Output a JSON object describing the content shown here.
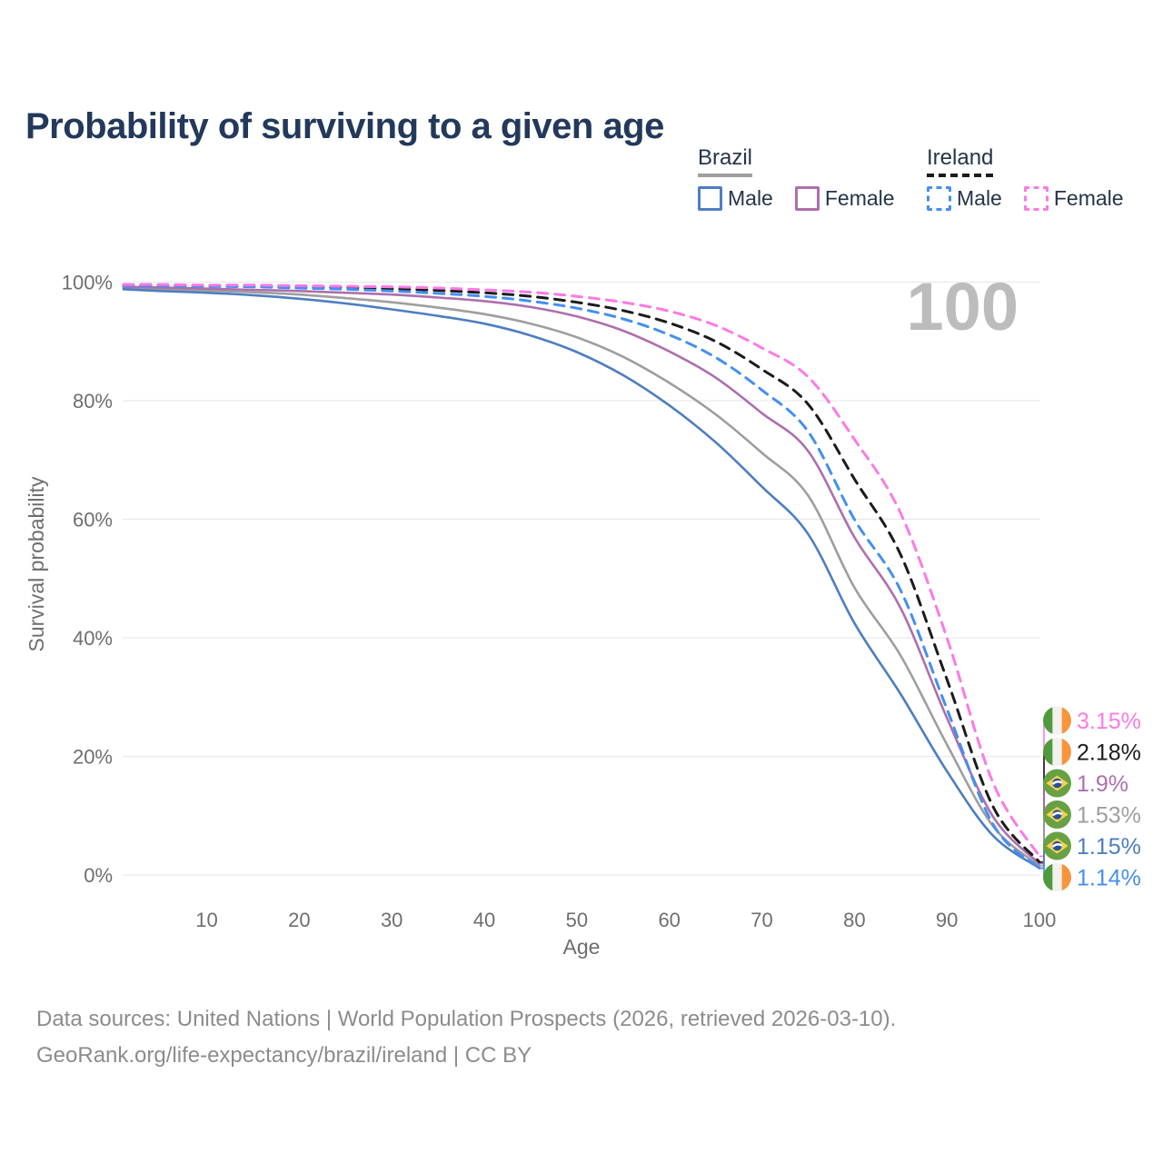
{
  "title": "Probability of surviving to a given age",
  "watermark_age": "100",
  "legend": {
    "groups": [
      {
        "label": "Brazil",
        "line_color": "#9e9e9e",
        "line_style": "solid",
        "items": [
          {
            "label": "Male",
            "color": "#4d7ec2",
            "style": "solid"
          },
          {
            "label": "Female",
            "color": "#ad6fad",
            "style": "solid"
          }
        ]
      },
      {
        "label": "Ireland",
        "line_color": "#1b1b1b",
        "line_style": "dashed",
        "items": [
          {
            "label": "Male",
            "color": "#448ff0",
            "style": "dashed"
          },
          {
            "label": "Female",
            "color": "#fb7ae6",
            "style": "dashed"
          }
        ]
      }
    ]
  },
  "chart_data": {
    "type": "line",
    "title": "Probability of surviving to a given age",
    "xlabel": "Age",
    "ylabel": "Survival probability",
    "xlim": [
      0,
      100
    ],
    "ylim": [
      0,
      100
    ],
    "grid": "horizontal",
    "legend_position": "top-right",
    "x_ticks": [
      {
        "label": "10",
        "value": 10
      },
      {
        "label": "20",
        "value": 20
      },
      {
        "label": "30",
        "value": 30
      },
      {
        "label": "40",
        "value": 40
      },
      {
        "label": "50",
        "value": 50
      },
      {
        "label": "60",
        "value": 60
      },
      {
        "label": "70",
        "value": 70
      },
      {
        "label": "80",
        "value": 80
      },
      {
        "label": "90",
        "value": 90
      },
      {
        "label": "100",
        "value": 100
      }
    ],
    "y_ticks": [
      {
        "label": "0%",
        "value": 0
      },
      {
        "label": "20%",
        "value": 20
      },
      {
        "label": "40%",
        "value": 40
      },
      {
        "label": "60%",
        "value": 60
      },
      {
        "label": "80%",
        "value": 80
      },
      {
        "label": "100%",
        "value": 100
      }
    ],
    "x": [
      1,
      5,
      10,
      15,
      20,
      25,
      30,
      35,
      40,
      45,
      50,
      55,
      60,
      65,
      70,
      75,
      80,
      85,
      90,
      95,
      100
    ],
    "series": [
      {
        "name": "Brazil — Both sexes",
        "country": "Brazil",
        "sex": "Both sexes",
        "flag": "brazil",
        "color": "#9e9e9e",
        "dashed": false,
        "end_label": "1.53%",
        "end_value": 1.53,
        "values": [
          99.0,
          98.8,
          98.6,
          98.3,
          97.9,
          97.3,
          96.6,
          95.7,
          94.6,
          93.0,
          90.7,
          87.4,
          83.0,
          77.7,
          71.2,
          64.0,
          48.5,
          37.0,
          22.0,
          8.2,
          1.53
        ]
      },
      {
        "name": "Brazil — Female",
        "country": "Brazil",
        "sex": "Female",
        "flag": "brazil",
        "color": "#ad6fad",
        "dashed": false,
        "end_label": "1.9%",
        "end_value": 1.9,
        "values": [
          99.2,
          99.1,
          98.9,
          98.7,
          98.5,
          98.2,
          97.9,
          97.4,
          96.8,
          95.8,
          94.2,
          91.8,
          88.3,
          83.9,
          77.9,
          71.5,
          57.0,
          45.0,
          26.5,
          9.8,
          1.9
        ]
      },
      {
        "name": "Brazil — Male",
        "country": "Brazil",
        "sex": "Male",
        "flag": "brazil",
        "color": "#4d7ec2",
        "dashed": false,
        "end_label": "1.15%",
        "end_value": 1.15,
        "values": [
          98.8,
          98.5,
          98.2,
          97.8,
          97.2,
          96.4,
          95.4,
          94.3,
          93.0,
          91.0,
          88.2,
          84.3,
          79.2,
          73.0,
          65.5,
          57.5,
          42.5,
          30.5,
          17.5,
          6.6,
          1.15
        ]
      },
      {
        "name": "Ireland — Both sexes",
        "country": "Ireland",
        "sex": "Both sexes",
        "flag": "ireland",
        "color": "#1b1b1b",
        "dashed": true,
        "end_label": "2.18%",
        "end_value": 2.18,
        "values": [
          99.5,
          99.5,
          99.4,
          99.3,
          99.2,
          99.1,
          98.9,
          98.6,
          98.2,
          97.6,
          96.6,
          95.2,
          93.1,
          90.0,
          85.3,
          79.4,
          66.8,
          54.0,
          33.0,
          11.5,
          2.18
        ]
      },
      {
        "name": "Ireland — Male",
        "country": "Ireland",
        "sex": "Male",
        "flag": "ireland",
        "color": "#448ff0",
        "dashed": true,
        "end_label": "1.14%",
        "end_value": 1.14,
        "values": [
          99.4,
          99.4,
          99.3,
          99.2,
          99.0,
          98.8,
          98.5,
          98.1,
          97.6,
          96.8,
          95.6,
          93.8,
          91.1,
          87.3,
          81.8,
          74.8,
          60.0,
          48.0,
          28.0,
          8.5,
          1.14
        ]
      },
      {
        "name": "Ireland — Female",
        "country": "Ireland",
        "sex": "Female",
        "flag": "ireland",
        "color": "#fb7ae6",
        "dashed": true,
        "end_label": "3.15%",
        "end_value": 3.15,
        "values": [
          99.6,
          99.6,
          99.5,
          99.5,
          99.4,
          99.3,
          99.2,
          99.0,
          98.7,
          98.3,
          97.6,
          96.6,
          95.1,
          92.7,
          88.9,
          84.0,
          73.5,
          61.0,
          40.0,
          15.5,
          3.15
        ]
      }
    ],
    "flag_colors": {
      "ireland": {
        "green": "#4f9a3c",
        "white": "#f2f1ed",
        "orange": "#f8953c"
      },
      "brazil": {
        "green": "#68a144",
        "yellow": "#f9d24b",
        "blue": "#2a4fa2",
        "band": "#ffffff"
      }
    }
  },
  "footer": {
    "line1": "Data sources: United Nations | World Population Prospects (2026, retrieved 2026-03-10).",
    "line2": "GeoRank.org/life-expectancy/brazil/ireland | CC BY"
  }
}
